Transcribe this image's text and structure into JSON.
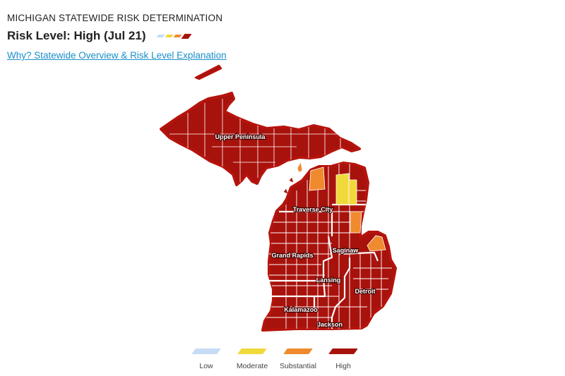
{
  "header": {
    "eyebrow": "MICHIGAN STATEWIDE RISK DETERMINATION",
    "risk_title": "Risk Level: High (Jul 21)",
    "link_text": "Why? Statewide Overview & Risk Level Explanation"
  },
  "colors": {
    "low": "#c6dcf5",
    "moderate": "#f0d93a",
    "substantial": "#f08a2e",
    "high": "#a8120c",
    "border": "#ffffff",
    "outline": "#b5140d",
    "link": "#1a8fc9"
  },
  "current_level": "High",
  "map": {
    "regions": [
      {
        "id": "upper-peninsula",
        "label": "Upper Peninsula",
        "level": "High"
      },
      {
        "id": "traverse-city",
        "label": "Traverse City",
        "level": "High"
      },
      {
        "id": "saginaw",
        "label": "Saginaw",
        "level": "High"
      },
      {
        "id": "grand-rapids",
        "label": "Grand Rapids",
        "level": "High"
      },
      {
        "id": "lansing",
        "label": "Lansing",
        "level": "High"
      },
      {
        "id": "detroit",
        "label": "Detroit",
        "level": "High"
      },
      {
        "id": "kalamazoo",
        "label": "Kalamazoo",
        "level": "High"
      },
      {
        "id": "jackson",
        "label": "Jackson",
        "level": "High"
      }
    ]
  },
  "legend": [
    {
      "key": "low",
      "label": "Low"
    },
    {
      "key": "moderate",
      "label": "Moderate"
    },
    {
      "key": "substantial",
      "label": "Substantial"
    },
    {
      "key": "high",
      "label": "High"
    }
  ]
}
